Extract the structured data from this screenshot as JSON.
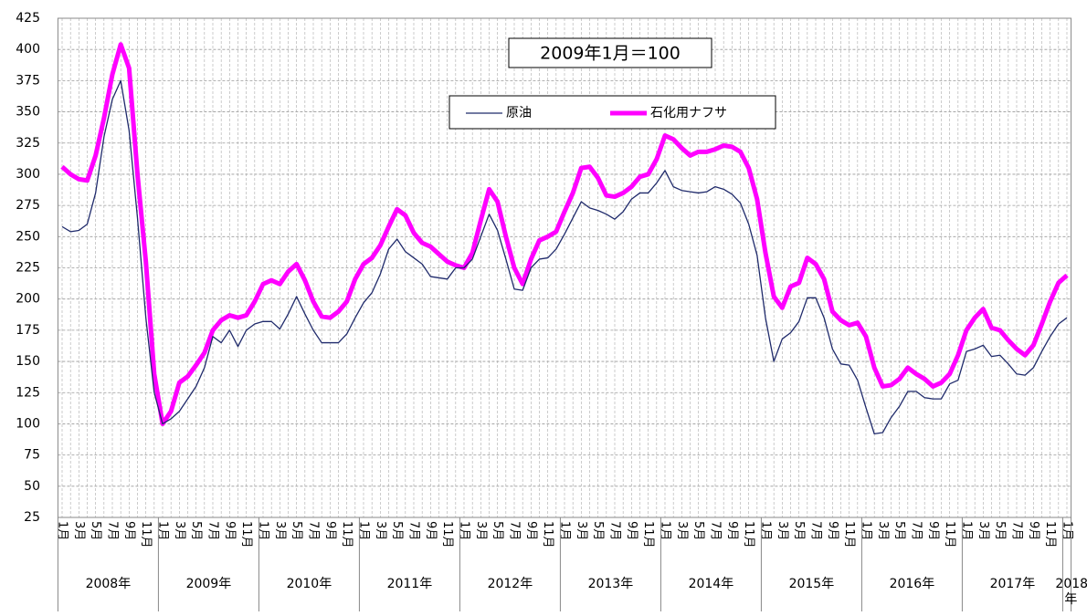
{
  "chart_data": {
    "type": "line",
    "annotation": "2009年1月＝100",
    "categories": [
      "1月",
      null,
      "3月",
      null,
      "5月",
      null,
      "7月",
      null,
      "9月",
      null,
      "11月",
      null,
      "1月",
      null,
      "3月",
      null,
      "5月",
      null,
      "7月",
      null,
      "9月",
      null,
      "11月",
      null,
      "1月",
      null,
      "3月",
      null,
      "5月",
      null,
      "7月",
      null,
      "9月",
      null,
      "11月",
      null,
      "1月",
      null,
      "3月",
      null,
      "5月",
      null,
      "7月",
      null,
      "9月",
      null,
      "11月",
      null,
      "1月",
      null,
      "3月",
      null,
      "5月",
      null,
      "7月",
      null,
      "9月",
      null,
      "11月",
      null,
      "1月",
      null,
      "3月",
      null,
      "5月",
      null,
      "7月",
      null,
      "9月",
      null,
      "11月",
      null,
      "1月",
      null,
      "3月",
      null,
      "5月",
      null,
      "7月",
      null,
      "9月",
      null,
      "11月",
      null,
      "1月",
      null,
      "3月",
      null,
      "5月",
      null,
      "7月",
      null,
      "9月",
      null,
      "11月",
      null,
      "1月",
      null,
      "3月",
      null,
      "5月",
      null,
      "7月",
      null,
      "9月",
      null,
      "11月",
      null,
      "1月",
      null,
      "3月",
      null,
      "5月",
      null,
      "7月",
      null,
      "9月",
      null,
      "11月",
      null,
      "1月"
    ],
    "groups": [
      "2008年",
      "2009年",
      "2010年",
      "2011年",
      "2012年",
      "2013年",
      "2014年",
      "2015年",
      "2016年",
      "2017年",
      "2018年"
    ],
    "series": [
      {
        "name": "原油",
        "color": "#1f2a6b",
        "width": 1.3,
        "values": [
          258,
          254,
          255,
          260,
          285,
          330,
          360,
          375,
          335,
          265,
          185,
          125,
          100,
          104,
          110,
          120,
          130,
          145,
          170,
          165,
          175,
          162,
          175,
          180,
          182,
          182,
          176,
          188,
          202,
          188,
          175,
          165,
          165,
          165,
          172,
          185,
          197,
          205,
          220,
          240,
          248,
          238,
          233,
          228,
          218,
          217,
          216,
          225,
          225,
          232,
          250,
          268,
          255,
          232,
          208,
          207,
          225,
          232,
          233,
          240,
          252,
          265,
          278,
          273,
          271,
          268,
          264,
          270,
          280,
          285,
          285,
          293,
          303,
          290,
          287,
          286,
          285,
          286,
          290,
          288,
          284,
          277,
          260,
          235,
          185,
          150,
          168,
          173,
          182,
          201,
          201,
          185,
          160,
          148,
          147,
          135,
          113,
          92,
          93,
          105,
          114,
          126,
          126,
          121,
          120,
          120,
          132,
          135,
          158,
          160,
          163,
          154,
          155,
          148,
          140,
          139,
          145,
          158,
          170,
          180,
          185
        ]
      },
      {
        "name": "石化用ナフサ",
        "color": "#ff00ff",
        "width": 5,
        "values": [
          306,
          300,
          296,
          295,
          315,
          345,
          380,
          404,
          385,
          300,
          230,
          140,
          100,
          110,
          133,
          138,
          147,
          157,
          175,
          183,
          187,
          185,
          187,
          198,
          212,
          215,
          212,
          222,
          228,
          215,
          198,
          186,
          185,
          190,
          198,
          216,
          228,
          233,
          243,
          258,
          272,
          267,
          253,
          245,
          242,
          236,
          230,
          227,
          225,
          237,
          263,
          288,
          278,
          250,
          225,
          212,
          232,
          247,
          250,
          254,
          270,
          285,
          305,
          306,
          297,
          283,
          282,
          285,
          290,
          298,
          300,
          312,
          331,
          328,
          321,
          315,
          318,
          318,
          320,
          323,
          322,
          318,
          305,
          280,
          237,
          202,
          193,
          210,
          213,
          233,
          228,
          216,
          190,
          183,
          179,
          181,
          170,
          145,
          130,
          131,
          136,
          145,
          140,
          136,
          130,
          133,
          140,
          155,
          175,
          185,
          192,
          177,
          175,
          167,
          160,
          155,
          163,
          180,
          198,
          213,
          219
        ]
      }
    ],
    "ylim": [
      25,
      425
    ],
    "yticks": [
      25,
      50,
      75,
      100,
      125,
      150,
      175,
      200,
      225,
      250,
      275,
      300,
      325,
      350,
      375,
      400,
      425
    ],
    "grid": true
  }
}
